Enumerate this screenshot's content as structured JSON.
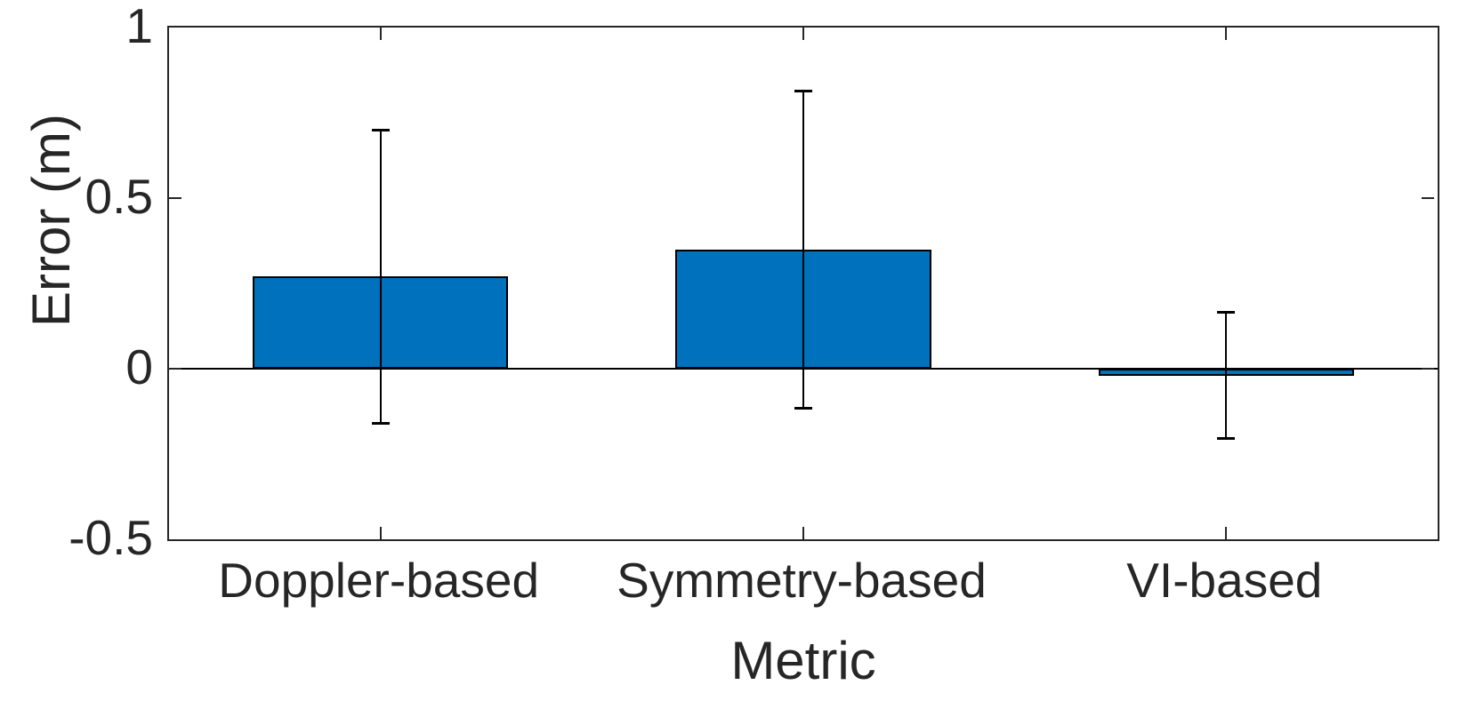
{
  "chart_data": {
    "type": "bar",
    "title": "",
    "xlabel": "Metric",
    "ylabel": "Error (m)",
    "categories": [
      "Doppler-based",
      "Symmetry-based",
      "VI-based"
    ],
    "series": [
      {
        "name": "Error",
        "values": [
          0.27,
          0.35,
          -0.02
        ],
        "error_bars": [
          0.43,
          0.465,
          0.185
        ]
      }
    ],
    "ylim": [
      -0.5,
      1.0
    ],
    "yticks": [
      -0.5,
      0,
      0.5,
      1
    ],
    "ytick_labels": [
      "-0.5",
      "0",
      "0.5",
      "1"
    ],
    "grid": false,
    "legend": null,
    "baseline_value": 0,
    "bar_width_fraction": 0.604,
    "colors": {
      "bar_fill": "#0072BD",
      "bar_edge": "#000000",
      "errorbar": "#000000",
      "axis": "#262626",
      "text": "#262626",
      "background": "#ffffff"
    }
  }
}
